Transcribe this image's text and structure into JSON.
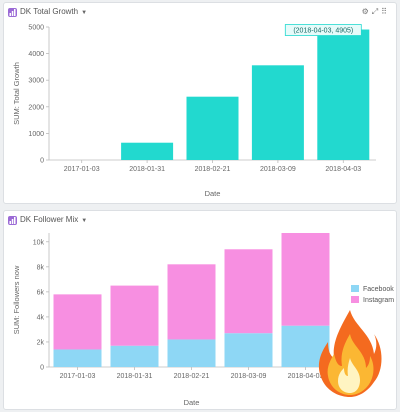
{
  "widgets": [
    {
      "title": "DK Total Growth",
      "chart_data": {
        "type": "bar",
        "categories": [
          "2017-01-03",
          "2018-01-31",
          "2018-02-21",
          "2018-03-09",
          "2018-04-03"
        ],
        "values": [
          0,
          650,
          2380,
          3560,
          4905
        ],
        "xlabel": "Date",
        "ylabel": "SUM: Total Growth",
        "ylim": [
          0,
          5000
        ],
        "yticks": [
          0,
          1000,
          2000,
          3000,
          4000,
          5000
        ],
        "color": "#22d9cf",
        "grid": false,
        "tooltip": "(2018-04-03, 4905)"
      }
    },
    {
      "title": "DK Follower Mix",
      "chart_data": {
        "type": "bar",
        "stacked": true,
        "categories": [
          "2017-01-03",
          "2018-01-31",
          "2018-02-21",
          "2018-03-09",
          "2018-04-03"
        ],
        "series": [
          {
            "name": "Facebook",
            "color": "#8ed7f5",
            "values": [
              1400,
              1700,
              2200,
              2700,
              3300
            ]
          },
          {
            "name": "Instagram",
            "color": "#f78fe1",
            "values": [
              4400,
              4800,
              6000,
              6700,
              7400
            ]
          }
        ],
        "xlabel": "Date",
        "ylabel": "SUM: Followers now",
        "ylim": [
          0,
          10700
        ],
        "yticks": [
          0,
          2000,
          4000,
          6000,
          8000,
          10000
        ],
        "ytick_labels": [
          "0",
          "2k",
          "4k",
          "6k",
          "8k",
          "10k"
        ],
        "grid": false,
        "legend": "right"
      }
    }
  ],
  "toolbar_icons": [
    "gear-icon",
    "expand-icon",
    "drag-handle-icon"
  ],
  "overlay_icon": "fire-icon"
}
